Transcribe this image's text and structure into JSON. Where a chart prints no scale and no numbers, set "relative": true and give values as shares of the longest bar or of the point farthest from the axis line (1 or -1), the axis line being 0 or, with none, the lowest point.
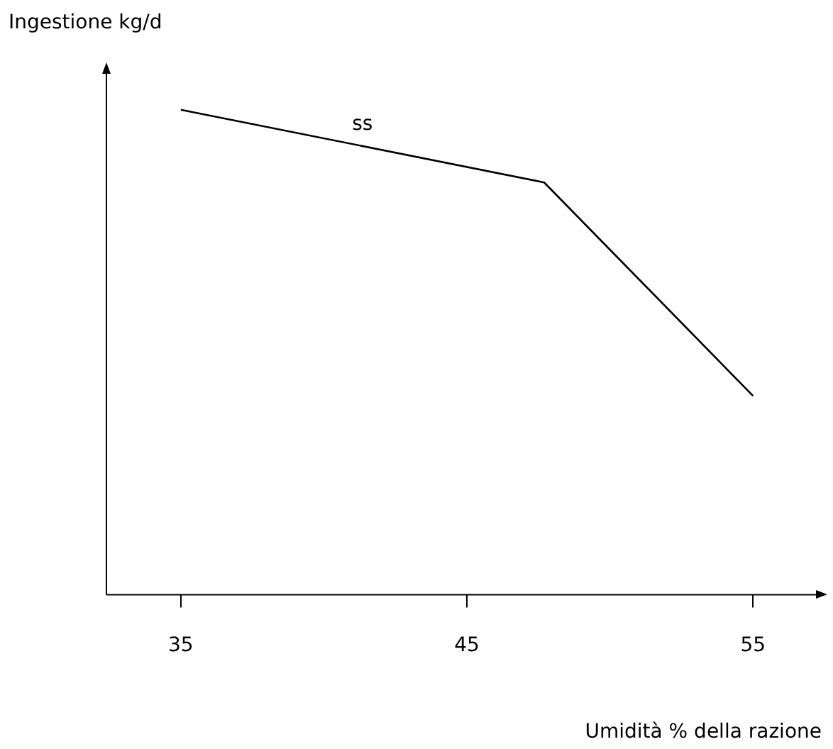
{
  "chart_data": {
    "type": "line",
    "xlabel": "Umidità % della razione",
    "ylabel": "Ingestione kg/d",
    "relative": true,
    "x": [
      35,
      47.7,
      55
    ],
    "series": [
      {
        "name": "ss",
        "color": "#000000",
        "values": [
          1,
          0.85,
          0.41
        ]
      }
    ],
    "xlim": [
      32.4,
      57.3
    ],
    "xticks": [
      35,
      45,
      55
    ],
    "grid": false,
    "legend": false,
    "marker": "none",
    "line_style": "solid",
    "tick_labels": "x"
  }
}
